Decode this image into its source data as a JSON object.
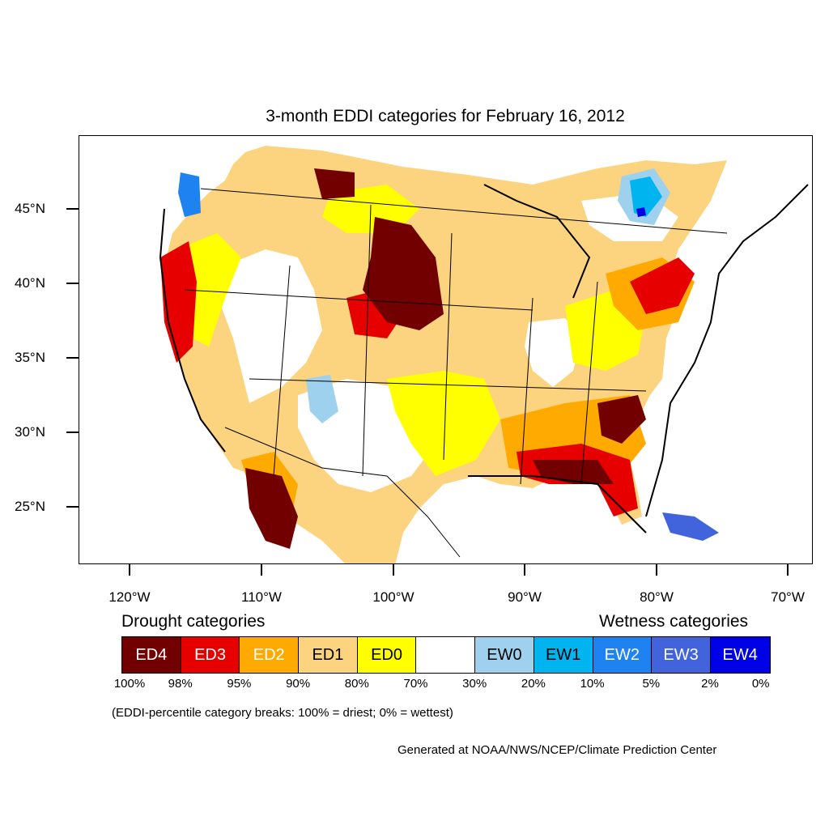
{
  "title": "3-month EDDI categories for February 16, 2012",
  "axes": {
    "lat_labels": [
      "45°N",
      "40°N",
      "35°N",
      "30°N",
      "25°N"
    ],
    "lon_labels": [
      "120°W",
      "110°W",
      "100°W",
      "90°W",
      "80°W",
      "70°W"
    ]
  },
  "legend": {
    "drought_heading": "Drought categories",
    "wetness_heading": "Wetness categories",
    "categories": [
      {
        "label": "ED4",
        "color": "#730000",
        "text_color": "#ffffff"
      },
      {
        "label": "ED3",
        "color": "#e60000",
        "text_color": "#ffffff"
      },
      {
        "label": "ED2",
        "color": "#ffaa00",
        "text_color": "#ffffff"
      },
      {
        "label": "ED1",
        "color": "#fcd37f",
        "text_color": "#000000"
      },
      {
        "label": "ED0",
        "color": "#ffff00",
        "text_color": "#000000"
      },
      {
        "label": "",
        "color": "#ffffff",
        "text_color": "#000000"
      },
      {
        "label": "EW0",
        "color": "#9dd1ee",
        "text_color": "#000000"
      },
      {
        "label": "EW1",
        "color": "#00b4f0",
        "text_color": "#000000"
      },
      {
        "label": "EW2",
        "color": "#1e82f0",
        "text_color": "#ffffff"
      },
      {
        "label": "EW3",
        "color": "#4164dc",
        "text_color": "#ffffff"
      },
      {
        "label": "EW4",
        "color": "#0000e6",
        "text_color": "#ffffff"
      }
    ],
    "breaks": [
      "100%",
      "98%",
      "95%",
      "90%",
      "80%",
      "70%",
      "30%",
      "20%",
      "10%",
      "5%",
      "2%",
      "0%"
    ],
    "note": "(EDDI-percentile category breaks: 100% = driest; 0% = wettest)"
  },
  "credit": "Generated at NOAA/NWS/NCEP/Climate Prediction Center"
}
